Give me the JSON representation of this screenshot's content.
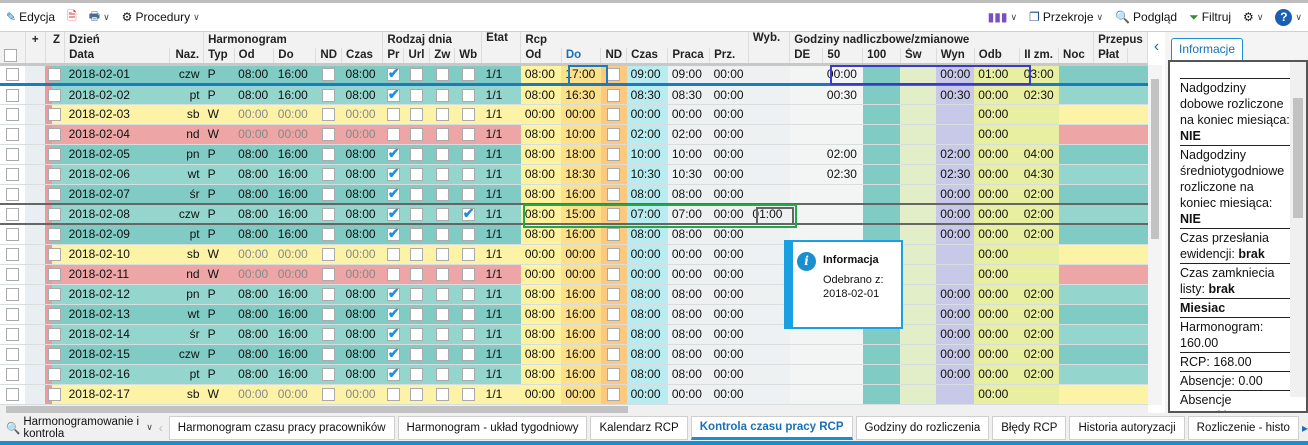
{
  "toolbar": {
    "edit": "Edycja",
    "procedures": "Procedury",
    "sections": "Przekroje",
    "preview": "Podgląd",
    "filter": "Filtruj"
  },
  "header1": {
    "plus": "+",
    "z": "Z",
    "day": "Dzień",
    "schedule": "Harmonogram",
    "daytype": "Rodzaj dnia",
    "etat": "Etat",
    "rcp": "Rcp",
    "wyb": "Wyb.",
    "overtime": "Godziny nadliczbowe/zmianowe",
    "pass": "Przepus"
  },
  "header2": [
    "Data",
    "Naz.",
    "Typ",
    "Od",
    "Do",
    "ND",
    "Czas",
    "Pr",
    "Url",
    "Zw",
    "Wb",
    "Od",
    "Do",
    "ND",
    "Czas",
    "Praca",
    "Prz.",
    "DE",
    "50",
    "100",
    "Św",
    "Wyn",
    "Odb",
    "II zm.",
    "Noc",
    "Płat"
  ],
  "colors": {
    "work": "#80cbc4",
    "work_alt": "#94d5cd",
    "sat": "#fdf3a6",
    "sun": "#eea5a5",
    "accent": "#1a8fd0"
  },
  "grid": {
    "rows": [
      [
        "2018-02-01",
        "czw",
        "P",
        "08:00",
        "16:00",
        "08:00",
        1,
        0,
        "1/1",
        "08:00",
        "17:00",
        "09:00",
        "09:00",
        "00:00",
        "",
        "00:00",
        "00:00",
        "01:00",
        "03:00",
        "w"
      ],
      [
        "2018-02-02",
        "pt",
        "P",
        "08:00",
        "16:00",
        "08:00",
        1,
        0,
        "1/1",
        "08:00",
        "16:30",
        "08:30",
        "08:30",
        "00:00",
        "",
        "00:30",
        "00:30",
        "00:00",
        "02:30",
        "w"
      ],
      [
        "2018-02-03",
        "sb",
        "W",
        "00:00",
        "00:00",
        "00:00",
        0,
        0,
        "1/1",
        "00:00",
        "00:00",
        "00:00",
        "00:00",
        "00:00",
        "",
        "",
        "",
        "00:00",
        "",
        "s"
      ],
      [
        "2018-02-04",
        "nd",
        "W",
        "00:00",
        "00:00",
        "00:00",
        0,
        0,
        "1/1",
        "08:00",
        "10:00",
        "02:00",
        "02:00",
        "00:00",
        "",
        "",
        "",
        "00:00",
        "",
        "n"
      ],
      [
        "2018-02-05",
        "pn",
        "P",
        "08:00",
        "16:00",
        "08:00",
        1,
        0,
        "1/1",
        "08:00",
        "18:00",
        "10:00",
        "10:00",
        "00:00",
        "",
        "02:00",
        "02:00",
        "00:00",
        "04:00",
        "w"
      ],
      [
        "2018-02-06",
        "wt",
        "P",
        "08:00",
        "16:00",
        "08:00",
        1,
        0,
        "1/1",
        "08:00",
        "18:30",
        "10:30",
        "10:30",
        "00:00",
        "",
        "02:30",
        "02:30",
        "00:00",
        "04:30",
        "w"
      ],
      [
        "2018-02-07",
        "śr",
        "P",
        "08:00",
        "16:00",
        "08:00",
        1,
        0,
        "1/1",
        "08:00",
        "16:00",
        "08:00",
        "08:00",
        "00:00",
        "",
        "",
        "00:00",
        "00:00",
        "02:00",
        "w"
      ],
      [
        "2018-02-08",
        "czw",
        "P",
        "08:00",
        "16:00",
        "08:00",
        1,
        1,
        "1/1",
        "08:00",
        "15:00",
        "07:00",
        "07:00",
        "00:00",
        "01:00",
        "",
        "00:00",
        "00:00",
        "02:00",
        "w"
      ],
      [
        "2018-02-09",
        "pt",
        "P",
        "08:00",
        "16:00",
        "08:00",
        1,
        0,
        "1/1",
        "08:00",
        "16:00",
        "08:00",
        "08:00",
        "00:00",
        "",
        "",
        "00:00",
        "00:00",
        "02:00",
        "w"
      ],
      [
        "2018-02-10",
        "sb",
        "W",
        "00:00",
        "00:00",
        "00:00",
        0,
        0,
        "1/1",
        "00:00",
        "00:00",
        "00:00",
        "00:00",
        "00:00",
        "",
        "",
        "",
        "00:00",
        "",
        "s"
      ],
      [
        "2018-02-11",
        "nd",
        "W",
        "00:00",
        "00:00",
        "00:00",
        0,
        0,
        "1/1",
        "00:00",
        "00:00",
        "00:00",
        "00:00",
        "00:00",
        "",
        "",
        "",
        "00:00",
        "",
        "n"
      ],
      [
        "2018-02-12",
        "pn",
        "P",
        "08:00",
        "16:00",
        "08:00",
        1,
        0,
        "1/1",
        "08:00",
        "16:00",
        "08:00",
        "08:00",
        "00:00",
        "",
        "",
        "00:00",
        "00:00",
        "02:00",
        "w"
      ],
      [
        "2018-02-13",
        "wt",
        "P",
        "08:00",
        "16:00",
        "08:00",
        1,
        0,
        "1/1",
        "08:00",
        "16:00",
        "08:00",
        "08:00",
        "00:00",
        "",
        "",
        "00:00",
        "00:00",
        "02:00",
        "w"
      ],
      [
        "2018-02-14",
        "śr",
        "P",
        "08:00",
        "16:00",
        "08:00",
        1,
        0,
        "1/1",
        "08:00",
        "16:00",
        "08:00",
        "08:00",
        "00:00",
        "",
        "",
        "00:00",
        "00:00",
        "02:00",
        "w"
      ],
      [
        "2018-02-15",
        "czw",
        "P",
        "08:00",
        "16:00",
        "08:00",
        1,
        0,
        "1/1",
        "08:00",
        "16:00",
        "08:00",
        "08:00",
        "00:00",
        "",
        "",
        "00:00",
        "00:00",
        "02:00",
        "w"
      ],
      [
        "2018-02-16",
        "pt",
        "P",
        "08:00",
        "16:00",
        "08:00",
        1,
        0,
        "1/1",
        "08:00",
        "16:00",
        "08:00",
        "08:00",
        "00:00",
        "",
        "",
        "00:00",
        "00:00",
        "02:00",
        "w"
      ],
      [
        "2018-02-17",
        "sb",
        "W",
        "00:00",
        "00:00",
        "00:00",
        0,
        0,
        "1/1",
        "00:00",
        "00:00",
        "00:00",
        "00:00",
        "00:00",
        "",
        "",
        "",
        "00:00",
        "",
        "s"
      ]
    ]
  },
  "info_panel": {
    "tab": "Informacje",
    "items": [
      {
        "label": "Nadgodziny dobowe rozliczone na koniec miesiąca: ",
        "value": "NIE"
      },
      {
        "label": "Nadgodziny średniotygodniowe rozliczone na koniec miesiąca: ",
        "value": "NIE"
      },
      {
        "label": "Czas przesłania ewidencji: ",
        "value": "brak"
      },
      {
        "label": "Czas zamkniecia listy: ",
        "value": "brak"
      },
      {
        "label": "",
        "value": "Miesiac"
      },
      {
        "label": "Harmonogram: 160.00",
        "value": ""
      },
      {
        "label": "RCP: 168.00",
        "value": ""
      },
      {
        "label": "Absencje: 0.00",
        "value": ""
      },
      {
        "label": "Absencje wszystkie: 0.00",
        "value": ""
      }
    ]
  },
  "tooltip": {
    "title": "Informacja",
    "message": "Odebrano z:",
    "date": "2018-02-01"
  },
  "bottom": {
    "module": "Harmonogramowanie i kontrola",
    "tabs": [
      "Harmonogram czasu pracy pracowników",
      "Harmonogram - układ tygodniowy",
      "Kalendarz RCP",
      "Kontrola czasu pracy RCP",
      "Godziny do rozliczenia",
      "Błędy RCP",
      "Historia autoryzacji",
      "Rozliczenie - histo"
    ],
    "active": 3
  }
}
